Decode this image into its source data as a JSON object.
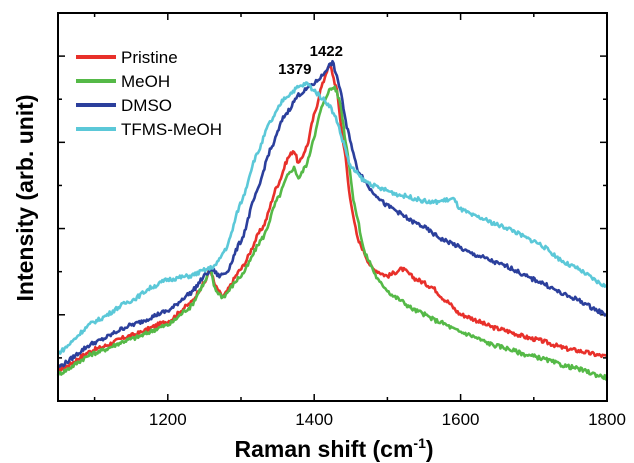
{
  "chart_data": {
    "type": "line",
    "xlabel": "Raman shift (cm",
    "xlabel_superscript": "-1",
    "xlabel_suffix": ")",
    "ylabel": "Intensity (arb. unit)",
    "xlim": [
      1050,
      1800
    ],
    "ylim": [
      0,
      1
    ],
    "xticks": [
      1200,
      1400,
      1600,
      1800
    ],
    "xtick_labels": [
      "1200",
      "1400",
      "1600",
      "1800"
    ],
    "y_tick_labels_shown": false,
    "grid": false,
    "legend_position": "top-left",
    "annotations": [
      {
        "text": "1379",
        "x": 1379
      },
      {
        "text": "1422",
        "x": 1422
      }
    ],
    "series": [
      {
        "name": "Pristine",
        "color": "#e8302a",
        "x": [
          1050,
          1100,
          1150,
          1200,
          1230,
          1250,
          1258,
          1265,
          1275,
          1300,
          1330,
          1350,
          1365,
          1372,
          1379,
          1390,
          1400,
          1410,
          1418,
          1422,
          1430,
          1440,
          1450,
          1460,
          1480,
          1500,
          1520,
          1540,
          1560,
          1580,
          1600,
          1650,
          1700,
          1750,
          1800
        ],
        "values": [
          0.07,
          0.13,
          0.17,
          0.21,
          0.26,
          0.32,
          0.36,
          0.31,
          0.28,
          0.36,
          0.48,
          0.6,
          0.68,
          0.7,
          0.66,
          0.71,
          0.8,
          0.88,
          0.93,
          0.94,
          0.88,
          0.72,
          0.55,
          0.44,
          0.36,
          0.34,
          0.36,
          0.33,
          0.31,
          0.27,
          0.23,
          0.19,
          0.16,
          0.13,
          0.11
        ]
      },
      {
        "name": "MeOH",
        "color": "#55b947",
        "x": [
          1050,
          1100,
          1150,
          1200,
          1230,
          1250,
          1258,
          1265,
          1275,
          1300,
          1330,
          1350,
          1365,
          1372,
          1379,
          1390,
          1400,
          1410,
          1420,
          1428,
          1435,
          1445,
          1455,
          1470,
          1490,
          1510,
          1540,
          1570,
          1600,
          1650,
          1700,
          1750,
          1800
        ],
        "values": [
          0.06,
          0.12,
          0.16,
          0.2,
          0.25,
          0.32,
          0.36,
          0.3,
          0.28,
          0.34,
          0.45,
          0.56,
          0.63,
          0.65,
          0.62,
          0.66,
          0.74,
          0.82,
          0.87,
          0.88,
          0.84,
          0.7,
          0.54,
          0.4,
          0.32,
          0.28,
          0.24,
          0.21,
          0.18,
          0.14,
          0.11,
          0.08,
          0.05
        ]
      },
      {
        "name": "DMSO",
        "color": "#2b3f9c",
        "x": [
          1050,
          1100,
          1150,
          1200,
          1230,
          1255,
          1260,
          1270,
          1280,
          1300,
          1320,
          1340,
          1360,
          1380,
          1400,
          1410,
          1420,
          1425,
          1435,
          1445,
          1460,
          1480,
          1500,
          1540,
          1580,
          1620,
          1660,
          1700,
          1750,
          1800
        ],
        "values": [
          0.08,
          0.15,
          0.2,
          0.24,
          0.29,
          0.35,
          0.36,
          0.34,
          0.35,
          0.44,
          0.57,
          0.7,
          0.8,
          0.86,
          0.89,
          0.91,
          0.94,
          0.95,
          0.88,
          0.76,
          0.64,
          0.58,
          0.54,
          0.49,
          0.44,
          0.4,
          0.37,
          0.33,
          0.28,
          0.23
        ]
      },
      {
        "name": "TFMS-MeOH",
        "color": "#5bc8d8",
        "x": [
          1050,
          1100,
          1150,
          1180,
          1200,
          1230,
          1255,
          1265,
          1280,
          1300,
          1320,
          1340,
          1360,
          1379,
          1390,
          1400,
          1410,
          1420,
          1430,
          1440,
          1450,
          1470,
          1490,
          1520,
          1560,
          1590,
          1600,
          1620,
          1660,
          1700,
          1750,
          1800
        ],
        "values": [
          0.12,
          0.21,
          0.27,
          0.31,
          0.33,
          0.34,
          0.36,
          0.37,
          0.42,
          0.55,
          0.68,
          0.78,
          0.85,
          0.88,
          0.89,
          0.87,
          0.85,
          0.83,
          0.79,
          0.72,
          0.65,
          0.61,
          0.59,
          0.57,
          0.55,
          0.56,
          0.53,
          0.51,
          0.48,
          0.44,
          0.37,
          0.31
        ]
      }
    ]
  }
}
